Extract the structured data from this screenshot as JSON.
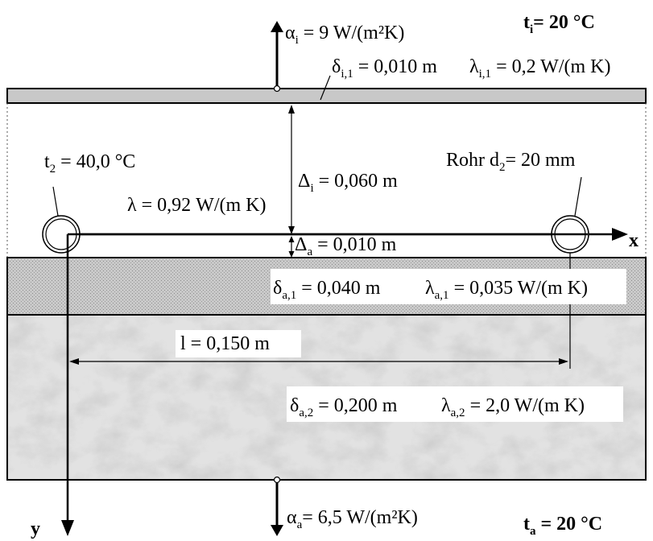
{
  "labels": {
    "alpha_i": {
      "sym": "α",
      "sub": "i",
      "rest": " = 9 W/(m²K)"
    },
    "t_i": {
      "sym": "t",
      "sub": "i",
      "rest": "= 20 °C"
    },
    "delta_i1": {
      "sym": "δ",
      "sub": "i,1",
      "rest": " = 0,010 m"
    },
    "lambda_i1": {
      "sym": "λ",
      "sub": "i,1",
      "rest": " = 0,2 W/(m K)"
    },
    "t2": {
      "sym": "t",
      "sub": "2",
      "rest": " = 40,0 °C"
    },
    "rohr": {
      "pre": "Rohr d",
      "sub": "2",
      "rest": "= 20 mm"
    },
    "Delta_i": {
      "sym": "Δ",
      "sub": "i",
      "rest": " = 0,060 m"
    },
    "lambda_fill": {
      "text": "λ = 0,92 W/(m K)"
    },
    "x_axis": {
      "text": "x"
    },
    "Delta_a": {
      "sym": "Δ",
      "sub": "a",
      "rest": " = 0,010 m"
    },
    "delta_a1": {
      "sym": "δ",
      "sub": "a,1",
      "rest": " = 0,040 m"
    },
    "lambda_a1": {
      "sym": "λ",
      "sub": "a,1",
      "rest": " = 0,035 W/(m K)"
    },
    "l_dim": {
      "text": "l = 0,150 m"
    },
    "delta_a2": {
      "sym": "δ",
      "sub": "a,2",
      "rest": " = 0,200 m"
    },
    "lambda_a2": {
      "sym": "λ",
      "sub": "a,2",
      "rest": " = 2,0 W/(m K)"
    },
    "y_axis": {
      "text": "y"
    },
    "alpha_a": {
      "sym": "α",
      "sub": "a",
      "rest": "= 6,5 W/(m²K)"
    },
    "t_a": {
      "sym": "t",
      "sub": "a",
      "rest": " = 20 °C"
    }
  },
  "colors": {
    "inner_layer": "#c8c8c8",
    "insulation_layer": "#bdbdbd",
    "concrete_layer": "#e2e2e2",
    "line": "#000000",
    "label_background": "#ffffff"
  }
}
